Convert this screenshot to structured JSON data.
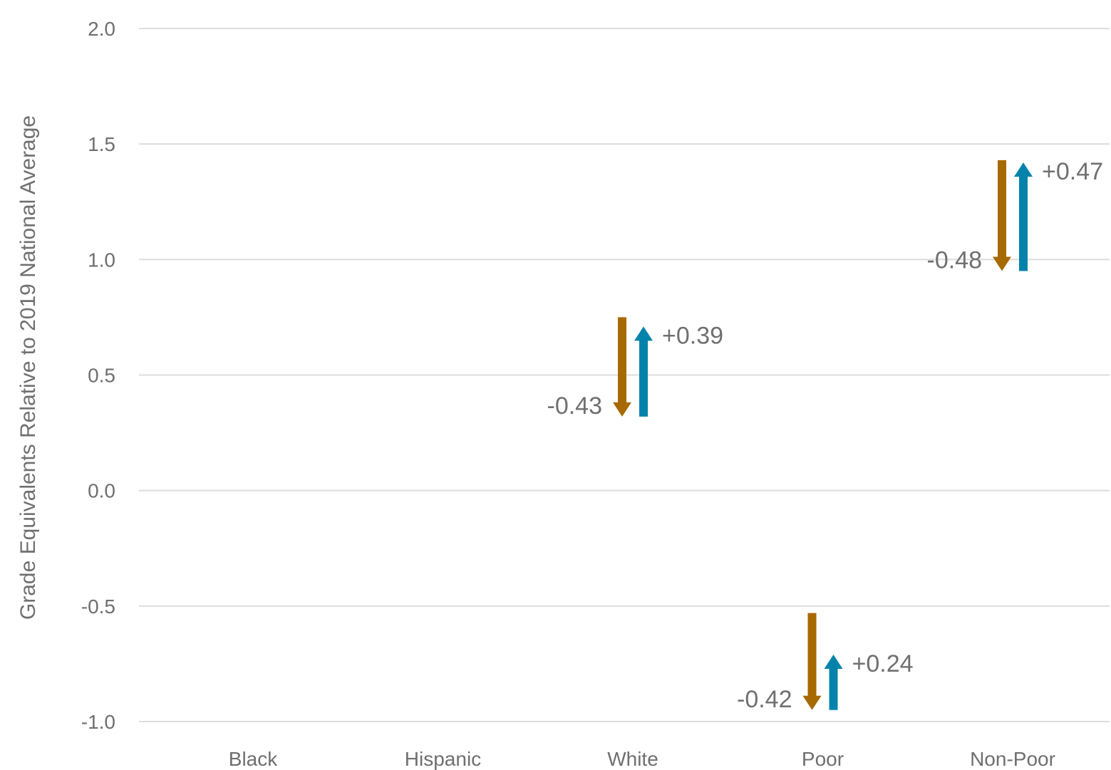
{
  "chart_data": {
    "type": "arrow",
    "title": "",
    "xlabel": "",
    "ylabel": "Grade Equivalents Relative to 2019 National Average",
    "ylim": [
      -1.0,
      2.0
    ],
    "yticks": [
      {
        "value": 2.0,
        "label": "2.0"
      },
      {
        "value": 1.5,
        "label": "1.5"
      },
      {
        "value": 1.0,
        "label": "1.0"
      },
      {
        "value": 0.5,
        "label": "0.5"
      },
      {
        "value": 0.0,
        "label": "0.0"
      },
      {
        "value": -0.5,
        "label": "-0.5"
      },
      {
        "value": -1.0,
        "label": "-1.0"
      }
    ],
    "grid": true,
    "categories": [
      "Black",
      "Hispanic",
      "White",
      "Poor",
      "Non-Poor"
    ],
    "series": [
      {
        "color": "#A66A00",
        "direction": "down",
        "points": [
          {
            "category": "White",
            "from": 0.75,
            "to": 0.32,
            "label": "-0.43"
          },
          {
            "category": "Poor",
            "from": -0.53,
            "to": -0.95,
            "label": "-0.42"
          },
          {
            "category": "Non-Poor",
            "from": 1.43,
            "to": 0.95,
            "label": "-0.48"
          }
        ]
      },
      {
        "color": "#0383AB",
        "direction": "up",
        "points": [
          {
            "category": "White",
            "from": 0.32,
            "to": 0.71,
            "label": "+0.39"
          },
          {
            "category": "Poor",
            "from": -0.95,
            "to": -0.71,
            "label": "+0.24"
          },
          {
            "category": "Non-Poor",
            "from": 0.95,
            "to": 1.42,
            "label": "+0.47"
          }
        ]
      }
    ]
  }
}
